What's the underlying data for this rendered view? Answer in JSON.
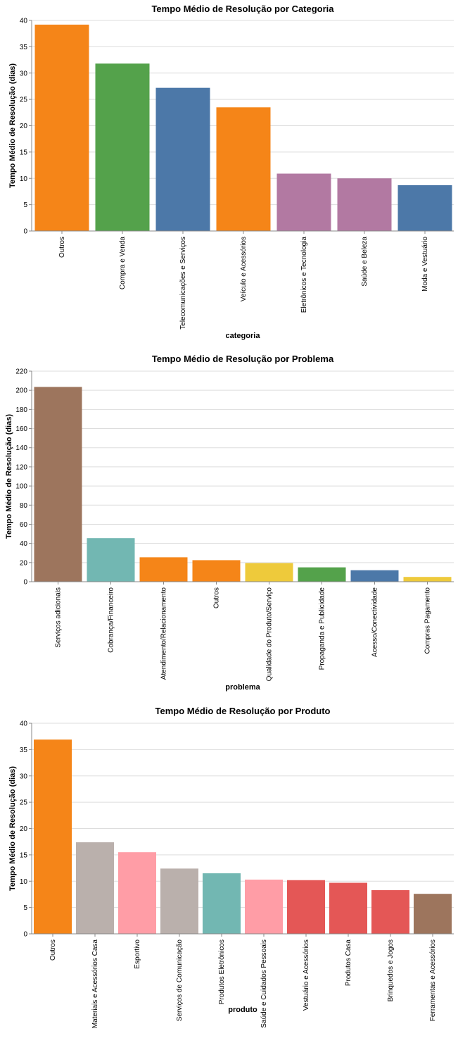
{
  "chart_data": [
    {
      "type": "bar",
      "title": "Tempo Médio de Resolução por Categoria",
      "xlabel": "categoria",
      "ylabel": "Tempo Médio de Resolução (dias)",
      "ylim": [
        0,
        40
      ],
      "yticks": [
        0,
        5,
        10,
        15,
        20,
        25,
        30,
        35,
        40
      ],
      "grid": true,
      "categories": [
        "Outros",
        "Compra e Venda",
        "Telecomunicações e Serviços",
        "Veículo e Acessórios",
        "Eletrônicos e Tecnologia",
        "Saúde e Beleza",
        "Moda e Vestuário"
      ],
      "values": [
        39.2,
        31.8,
        27.2,
        23.5,
        10.9,
        10.0,
        8.7
      ],
      "colors": [
        "#f58518",
        "#54a24b",
        "#4c78a8",
        "#f58518",
        "#b279a2",
        "#b279a2",
        "#4c78a8"
      ]
    },
    {
      "type": "bar",
      "title": "Tempo Médio de Resolução por Problema",
      "xlabel": "problema",
      "ylabel": "Tempo Médio de Resolução (dias)",
      "ylim": [
        0,
        220
      ],
      "yticks": [
        0,
        20,
        40,
        60,
        80,
        100,
        120,
        140,
        160,
        180,
        200,
        220
      ],
      "grid": true,
      "categories": [
        "Serviços adicionais",
        "Cobrança/Financeiro",
        "Atendimento/Relacionamento",
        "Outros",
        "Qualidade do Produto/Serviço",
        "Propaganda e Publicidade",
        "Acesso/Conectividade",
        "Compras Pagamento"
      ],
      "values": [
        203.5,
        45.5,
        25.5,
        22.5,
        19.5,
        15.0,
        12.0,
        5.0
      ],
      "colors": [
        "#9d755d",
        "#72b7b2",
        "#f58518",
        "#f58518",
        "#eeca3b",
        "#54a24b",
        "#4c78a8",
        "#eeca3b"
      ]
    },
    {
      "type": "bar",
      "title": "Tempo Médio de Resolução por Produto",
      "xlabel": "produto",
      "ylabel": "Tempo Médio de Resolução (dias)",
      "ylim": [
        0,
        40
      ],
      "yticks": [
        0,
        5,
        10,
        15,
        20,
        25,
        30,
        35,
        40
      ],
      "grid": true,
      "categories": [
        "Outros",
        "Materiais e Acessórios Casa",
        "Esportivo",
        "Serviços de Comunicação",
        "Produtos Eletrônicos",
        "Saúde e Cuidados Pessoais",
        "Vestuário e Acessórios",
        "Produtos Casa",
        "Brinquedos e Jogos",
        "Ferramentas e Acessórios"
      ],
      "values": [
        36.9,
        17.4,
        15.5,
        12.4,
        11.5,
        10.3,
        10.2,
        9.7,
        8.3,
        7.6
      ],
      "colors": [
        "#f58518",
        "#bab0ac",
        "#ff9da6",
        "#bab0ac",
        "#72b7b2",
        "#ff9da6",
        "#e45756",
        "#e45756",
        "#e45756",
        "#9d755d"
      ]
    }
  ]
}
